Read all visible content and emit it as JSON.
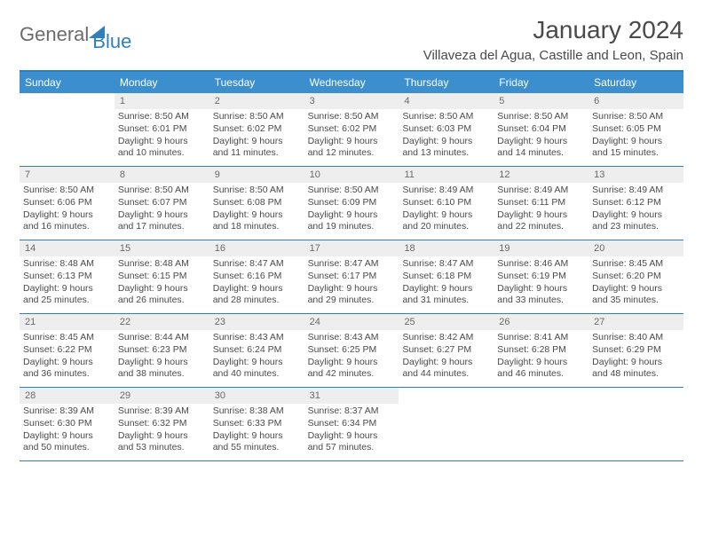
{
  "logo": {
    "text1": "General",
    "text2": "Blue"
  },
  "title": "January 2024",
  "location": "Villaveza del Agua, Castille and Leon, Spain",
  "colors": {
    "header_bar": "#3b8fcf",
    "border": "#2f7fbf",
    "daynum_bg": "#eeeeee",
    "text": "#4a4a4a"
  },
  "weekdays": [
    "Sunday",
    "Monday",
    "Tuesday",
    "Wednesday",
    "Thursday",
    "Friday",
    "Saturday"
  ],
  "weeks": [
    [
      {
        "n": "",
        "sr": "",
        "ss": "",
        "dl": ""
      },
      {
        "n": "1",
        "sr": "Sunrise: 8:50 AM",
        "ss": "Sunset: 6:01 PM",
        "dl": "Daylight: 9 hours and 10 minutes."
      },
      {
        "n": "2",
        "sr": "Sunrise: 8:50 AM",
        "ss": "Sunset: 6:02 PM",
        "dl": "Daylight: 9 hours and 11 minutes."
      },
      {
        "n": "3",
        "sr": "Sunrise: 8:50 AM",
        "ss": "Sunset: 6:02 PM",
        "dl": "Daylight: 9 hours and 12 minutes."
      },
      {
        "n": "4",
        "sr": "Sunrise: 8:50 AM",
        "ss": "Sunset: 6:03 PM",
        "dl": "Daylight: 9 hours and 13 minutes."
      },
      {
        "n": "5",
        "sr": "Sunrise: 8:50 AM",
        "ss": "Sunset: 6:04 PM",
        "dl": "Daylight: 9 hours and 14 minutes."
      },
      {
        "n": "6",
        "sr": "Sunrise: 8:50 AM",
        "ss": "Sunset: 6:05 PM",
        "dl": "Daylight: 9 hours and 15 minutes."
      }
    ],
    [
      {
        "n": "7",
        "sr": "Sunrise: 8:50 AM",
        "ss": "Sunset: 6:06 PM",
        "dl": "Daylight: 9 hours and 16 minutes."
      },
      {
        "n": "8",
        "sr": "Sunrise: 8:50 AM",
        "ss": "Sunset: 6:07 PM",
        "dl": "Daylight: 9 hours and 17 minutes."
      },
      {
        "n": "9",
        "sr": "Sunrise: 8:50 AM",
        "ss": "Sunset: 6:08 PM",
        "dl": "Daylight: 9 hours and 18 minutes."
      },
      {
        "n": "10",
        "sr": "Sunrise: 8:50 AM",
        "ss": "Sunset: 6:09 PM",
        "dl": "Daylight: 9 hours and 19 minutes."
      },
      {
        "n": "11",
        "sr": "Sunrise: 8:49 AM",
        "ss": "Sunset: 6:10 PM",
        "dl": "Daylight: 9 hours and 20 minutes."
      },
      {
        "n": "12",
        "sr": "Sunrise: 8:49 AM",
        "ss": "Sunset: 6:11 PM",
        "dl": "Daylight: 9 hours and 22 minutes."
      },
      {
        "n": "13",
        "sr": "Sunrise: 8:49 AM",
        "ss": "Sunset: 6:12 PM",
        "dl": "Daylight: 9 hours and 23 minutes."
      }
    ],
    [
      {
        "n": "14",
        "sr": "Sunrise: 8:48 AM",
        "ss": "Sunset: 6:13 PM",
        "dl": "Daylight: 9 hours and 25 minutes."
      },
      {
        "n": "15",
        "sr": "Sunrise: 8:48 AM",
        "ss": "Sunset: 6:15 PM",
        "dl": "Daylight: 9 hours and 26 minutes."
      },
      {
        "n": "16",
        "sr": "Sunrise: 8:47 AM",
        "ss": "Sunset: 6:16 PM",
        "dl": "Daylight: 9 hours and 28 minutes."
      },
      {
        "n": "17",
        "sr": "Sunrise: 8:47 AM",
        "ss": "Sunset: 6:17 PM",
        "dl": "Daylight: 9 hours and 29 minutes."
      },
      {
        "n": "18",
        "sr": "Sunrise: 8:47 AM",
        "ss": "Sunset: 6:18 PM",
        "dl": "Daylight: 9 hours and 31 minutes."
      },
      {
        "n": "19",
        "sr": "Sunrise: 8:46 AM",
        "ss": "Sunset: 6:19 PM",
        "dl": "Daylight: 9 hours and 33 minutes."
      },
      {
        "n": "20",
        "sr": "Sunrise: 8:45 AM",
        "ss": "Sunset: 6:20 PM",
        "dl": "Daylight: 9 hours and 35 minutes."
      }
    ],
    [
      {
        "n": "21",
        "sr": "Sunrise: 8:45 AM",
        "ss": "Sunset: 6:22 PM",
        "dl": "Daylight: 9 hours and 36 minutes."
      },
      {
        "n": "22",
        "sr": "Sunrise: 8:44 AM",
        "ss": "Sunset: 6:23 PM",
        "dl": "Daylight: 9 hours and 38 minutes."
      },
      {
        "n": "23",
        "sr": "Sunrise: 8:43 AM",
        "ss": "Sunset: 6:24 PM",
        "dl": "Daylight: 9 hours and 40 minutes."
      },
      {
        "n": "24",
        "sr": "Sunrise: 8:43 AM",
        "ss": "Sunset: 6:25 PM",
        "dl": "Daylight: 9 hours and 42 minutes."
      },
      {
        "n": "25",
        "sr": "Sunrise: 8:42 AM",
        "ss": "Sunset: 6:27 PM",
        "dl": "Daylight: 9 hours and 44 minutes."
      },
      {
        "n": "26",
        "sr": "Sunrise: 8:41 AM",
        "ss": "Sunset: 6:28 PM",
        "dl": "Daylight: 9 hours and 46 minutes."
      },
      {
        "n": "27",
        "sr": "Sunrise: 8:40 AM",
        "ss": "Sunset: 6:29 PM",
        "dl": "Daylight: 9 hours and 48 minutes."
      }
    ],
    [
      {
        "n": "28",
        "sr": "Sunrise: 8:39 AM",
        "ss": "Sunset: 6:30 PM",
        "dl": "Daylight: 9 hours and 50 minutes."
      },
      {
        "n": "29",
        "sr": "Sunrise: 8:39 AM",
        "ss": "Sunset: 6:32 PM",
        "dl": "Daylight: 9 hours and 53 minutes."
      },
      {
        "n": "30",
        "sr": "Sunrise: 8:38 AM",
        "ss": "Sunset: 6:33 PM",
        "dl": "Daylight: 9 hours and 55 minutes."
      },
      {
        "n": "31",
        "sr": "Sunrise: 8:37 AM",
        "ss": "Sunset: 6:34 PM",
        "dl": "Daylight: 9 hours and 57 minutes."
      },
      {
        "n": "",
        "sr": "",
        "ss": "",
        "dl": ""
      },
      {
        "n": "",
        "sr": "",
        "ss": "",
        "dl": ""
      },
      {
        "n": "",
        "sr": "",
        "ss": "",
        "dl": ""
      }
    ]
  ]
}
